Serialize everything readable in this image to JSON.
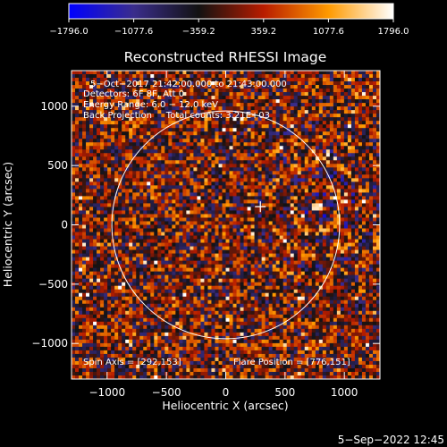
{
  "chart_data": {
    "type": "heatmap",
    "title": "Reconstructed RHESSI Image",
    "xlabel": "Heliocentric X (arcsec)",
    "ylabel": "Heliocentric Y (arcsec)",
    "xlim": [
      -1300,
      1300
    ],
    "ylim": [
      -1300,
      1300
    ],
    "x_ticks": [
      -1000,
      -500,
      0,
      500,
      1000
    ],
    "y_ticks": [
      -1000,
      -500,
      0,
      500,
      1000
    ],
    "x_tick_labels": [
      "−1000",
      "−500",
      "0",
      "500",
      "1000"
    ],
    "y_tick_labels": [
      "−1000",
      "−500",
      "0",
      "500",
      "1000"
    ],
    "colorbar": {
      "min": -1796.0,
      "max": 1796.0,
      "ticks": [
        -1796.0,
        -1077.6,
        -359.2,
        359.2,
        1077.6,
        1796.0
      ],
      "tick_labels": [
        "−1796.0",
        "−1077.6",
        "−359.2",
        "359.2",
        "1077.6",
        "1796.0"
      ],
      "colors": [
        "#0000ff",
        "#3a2d8c",
        "#121212",
        "#b81c00",
        "#ff9a00",
        "#ffffff"
      ]
    },
    "annotations": {
      "time_range": "5−Oct−2017 21:42:00.000 to 21:43:00.000",
      "detectors": "Detectors: 6F 8F, Att 0",
      "energy": "Energy Range: 6.0 − 12.0 keV",
      "method_counts": "Back Projection     Total counts: 3.21E+03",
      "spin_axis": "Spin Axis = [292,153]",
      "flare_position": "Flare Position = [776,151]"
    },
    "solar_limb_radius_arcsec": 960,
    "spin_axis_marker": [
      292,
      153
    ],
    "bright_spot": [
      776,
      151
    ]
  },
  "footer": {
    "date": "5−Sep−2022 12:45"
  }
}
